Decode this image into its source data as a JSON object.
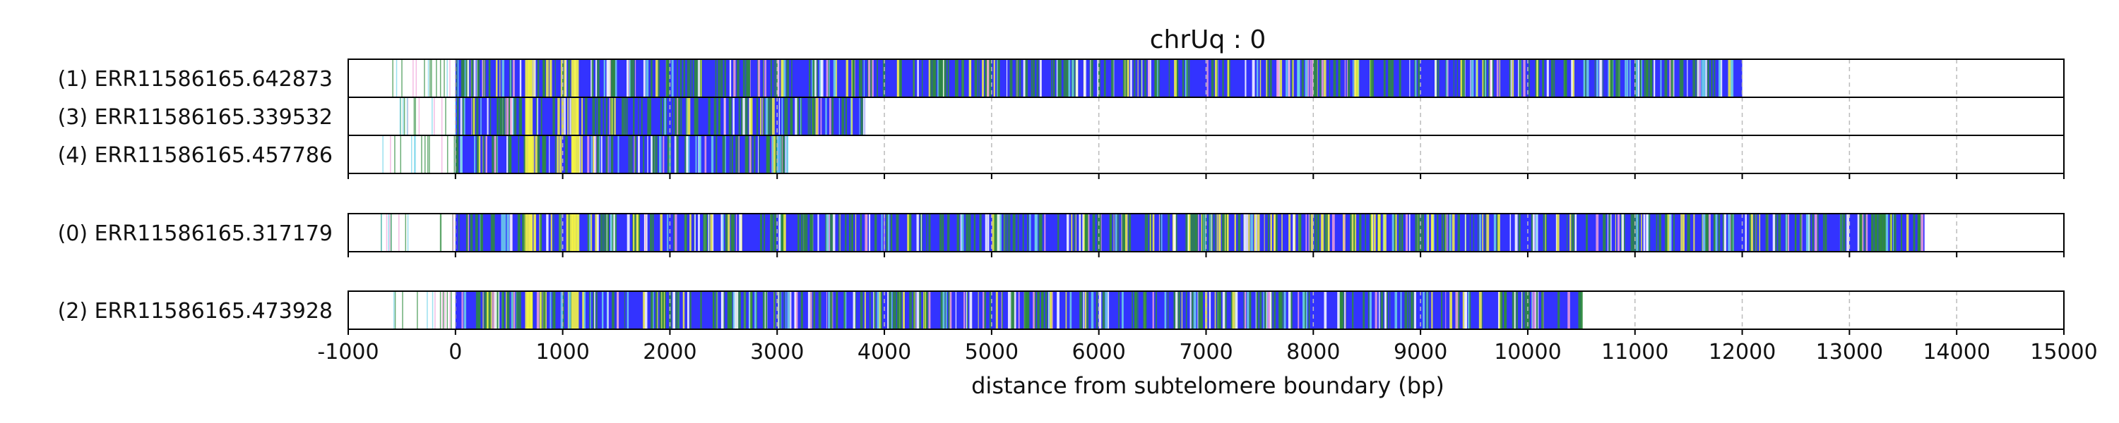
{
  "chart_data": {
    "type": "track",
    "title": "chrUq : 0",
    "xlabel": "distance from subtelomere boundary (bp)",
    "xlim": [
      -1000,
      15000
    ],
    "x_ticks": [
      -1000,
      0,
      1000,
      2000,
      3000,
      4000,
      5000,
      6000,
      7000,
      8000,
      9000,
      10000,
      11000,
      12000,
      13000,
      14000,
      15000
    ],
    "grid": "vertical dashed",
    "colors": {
      "base": "#3333ff",
      "accent_green": "#2e8b3d",
      "accent_yellow": "#f5f542",
      "accent_cyan": "#6fd3e8",
      "accent_pink": "#f0a0d8",
      "accent_white": "#ffffff",
      "gridline": "#bbbbbb"
    },
    "groups": [
      {
        "reads": [
          {
            "label": "(1) ERR11586165.642873",
            "start": -1000,
            "end": 12000,
            "dense_start": 0
          },
          {
            "label": "(3) ERR11586165.339532",
            "start": -1000,
            "end": 3820,
            "dense_start": 0
          },
          {
            "label": "(4) ERR11586165.457786",
            "start": -1000,
            "end": 3100,
            "dense_start": 0
          }
        ]
      },
      {
        "reads": [
          {
            "label": "(0) ERR11586165.317179",
            "start": -1000,
            "end": 13700,
            "dense_start": 0
          }
        ]
      },
      {
        "reads": [
          {
            "label": "(2) ERR11586165.473928",
            "start": -1000,
            "end": 10500,
            "dense_start": 0
          }
        ]
      }
    ]
  }
}
